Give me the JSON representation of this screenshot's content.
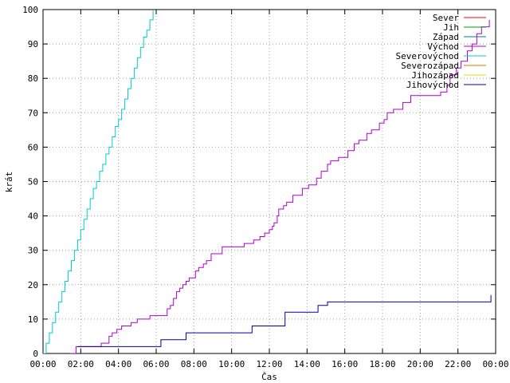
{
  "chart_data": {
    "type": "line",
    "xlabel": "Čas",
    "ylabel": "krát",
    "x_ticks": [
      "00:00",
      "02:00",
      "04:00",
      "06:00",
      "08:00",
      "10:00",
      "12:00",
      "14:00",
      "16:00",
      "18:00",
      "20:00",
      "22:00",
      "00:00"
    ],
    "xlim": [
      "00:00",
      "24:00"
    ],
    "ylim": [
      0,
      100
    ],
    "y_ticks": [
      0,
      10,
      20,
      30,
      40,
      50,
      60,
      70,
      80,
      90,
      100
    ],
    "grid": true,
    "legend_position": "top-right",
    "series": [
      {
        "name": "Sever",
        "color": "#ff0000",
        "x": [],
        "y": []
      },
      {
        "name": "Jih",
        "color": "#00a000",
        "x": [],
        "y": []
      },
      {
        "name": "Západ",
        "color": "#008080",
        "x": [],
        "y": []
      },
      {
        "name": "Východ",
        "color": "#b000d0",
        "x": [
          "01:25",
          "01:45",
          "02:50",
          "03:05",
          "03:30",
          "03:40",
          "03:55",
          "04:10",
          "04:40",
          "05:00",
          "05:40",
          "06:35",
          "06:45",
          "06:55",
          "07:05",
          "07:15",
          "07:25",
          "07:35",
          "07:45",
          "08:05",
          "08:15",
          "08:30",
          "08:40",
          "08:55",
          "09:30",
          "10:00",
          "10:40",
          "11:10",
          "11:30",
          "11:45",
          "12:00",
          "12:10",
          "12:15",
          "12:25",
          "12:30",
          "12:45",
          "12:55",
          "13:15",
          "13:45",
          "14:05",
          "14:30",
          "14:45",
          "15:05",
          "15:15",
          "15:40",
          "16:10",
          "16:30",
          "16:45",
          "17:10",
          "17:25",
          "17:50",
          "18:05",
          "18:15",
          "18:35",
          "19:05",
          "19:30",
          "20:05",
          "20:35",
          "20:55",
          "21:05",
          "21:25",
          "21:35",
          "21:55",
          "22:10",
          "22:30",
          "22:45",
          "23:00",
          "23:15",
          "23:40"
        ],
        "y": [
          0,
          2,
          2,
          3,
          5,
          6,
          7,
          8,
          9,
          10,
          11,
          13,
          14,
          16,
          18,
          19,
          20,
          21,
          22,
          24,
          25,
          26,
          27,
          29,
          31,
          31,
          32,
          33,
          34,
          35,
          36,
          37,
          38,
          40,
          42,
          43,
          44,
          46,
          48,
          49,
          51,
          53,
          55,
          56,
          57,
          59,
          61,
          62,
          64,
          65,
          67,
          68,
          70,
          71,
          73,
          75,
          75,
          75,
          75,
          76,
          78,
          81,
          83,
          85,
          88,
          90,
          93,
          95,
          97
        ]
      },
      {
        "name": "Severovýchod",
        "color": "#00cccc",
        "x": [
          "00:00",
          "00:10",
          "00:20",
          "00:30",
          "00:40",
          "00:50",
          "01:00",
          "01:10",
          "01:20",
          "01:30",
          "01:40",
          "01:50",
          "02:00",
          "02:10",
          "02:20",
          "02:30",
          "02:40",
          "02:50",
          "03:00",
          "03:10",
          "03:20",
          "03:30",
          "03:40",
          "03:50",
          "04:00",
          "04:10",
          "04:20",
          "04:30",
          "04:40",
          "04:50",
          "05:00",
          "05:10",
          "05:20",
          "05:30",
          "05:40",
          "05:50"
        ],
        "y": [
          0,
          3,
          6,
          9,
          12,
          15,
          18,
          21,
          24,
          27,
          30,
          33,
          36,
          39,
          42,
          45,
          48,
          50,
          53,
          55,
          58,
          60,
          63,
          66,
          68,
          71,
          74,
          77,
          80,
          83,
          86,
          89,
          92,
          94,
          97,
          100
        ]
      },
      {
        "name": "Severozápad",
        "color": "#e07000",
        "x": [],
        "y": []
      },
      {
        "name": "Jihozápad",
        "color": "#e0e000",
        "x": [],
        "y": []
      },
      {
        "name": "Jihovýchod",
        "color": "#0000a0",
        "x": [
          "01:50",
          "06:05",
          "06:15",
          "07:25",
          "07:35",
          "10:55",
          "11:05",
          "12:40",
          "12:50",
          "14:20",
          "14:35",
          "14:50",
          "15:05",
          "23:35",
          "23:45"
        ],
        "y": [
          2,
          2,
          4,
          4,
          6,
          6,
          8,
          8,
          12,
          12,
          14,
          14,
          15,
          15,
          17
        ]
      }
    ]
  }
}
